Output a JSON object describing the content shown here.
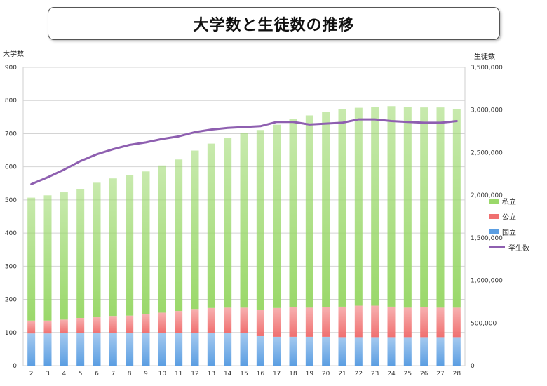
{
  "chart_data": {
    "type": "bar",
    "title": "大学数と生徒数の推移",
    "y_left_label": "大学数",
    "y_right_label": "生徒数",
    "y_left_lim": [
      0,
      900
    ],
    "y_left_ticks": [
      "0",
      "100",
      "200",
      "300",
      "400",
      "500",
      "600",
      "700",
      "800",
      "900"
    ],
    "y_right_lim": [
      0,
      3500000
    ],
    "y_right_ticks": [
      "0",
      "500,000",
      "1,000,000",
      "1,500,000",
      "2,000,000",
      "2,500,000",
      "3,000,000",
      "3,500,000"
    ],
    "categories": [
      "2",
      "3",
      "4",
      "5",
      "6",
      "7",
      "8",
      "9",
      "10",
      "11",
      "12",
      "13",
      "14",
      "15",
      "16",
      "17",
      "18",
      "19",
      "20",
      "21",
      "22",
      "23",
      "24",
      "25",
      "26",
      "27",
      "28"
    ],
    "stacked": true,
    "series": [
      {
        "name": "国立",
        "color": "#5b9ee2",
        "values": [
          97,
          97,
          98,
          98,
          98,
          98,
          98,
          98,
          99,
          99,
          99,
          99,
          99,
          99,
          89,
          87,
          87,
          87,
          87,
          86,
          86,
          86,
          86,
          86,
          86,
          86,
          86
        ]
      },
      {
        "name": "公立",
        "color": "#f07070",
        "values": [
          39,
          39,
          41,
          46,
          48,
          52,
          53,
          57,
          61,
          66,
          72,
          75,
          76,
          76,
          80,
          87,
          89,
          88,
          89,
          92,
          95,
          95,
          92,
          89,
          90,
          89,
          89
        ]
      },
      {
        "name": "私立",
        "color": "#9ad86a",
        "values": [
          371,
          378,
          384,
          389,
          406,
          415,
          425,
          431,
          444,
          457,
          478,
          496,
          512,
          526,
          542,
          553,
          568,
          580,
          589,
          595,
          597,
          599,
          605,
          606,
          603,
          604,
          600
        ]
      }
    ],
    "line_series": {
      "name": "学生数",
      "color": "#8e5fb0",
      "axis": "right",
      "values": [
        2130000,
        2210000,
        2300000,
        2400000,
        2480000,
        2540000,
        2590000,
        2620000,
        2660000,
        2690000,
        2740000,
        2770000,
        2790000,
        2800000,
        2810000,
        2860000,
        2860000,
        2830000,
        2840000,
        2850000,
        2890000,
        2890000,
        2870000,
        2860000,
        2850000,
        2850000,
        2870000
      ]
    },
    "legend_position": "right",
    "grid": true
  }
}
